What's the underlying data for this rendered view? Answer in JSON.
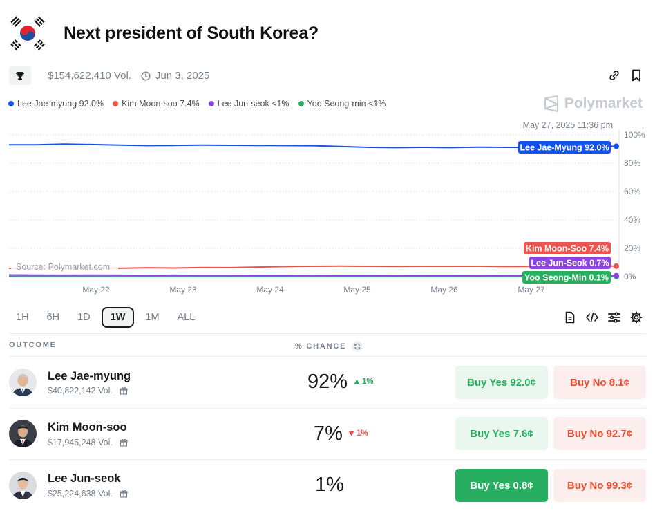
{
  "header": {
    "title": "Next president of South Korea?",
    "flag_icon": "south-korea-flag-icon"
  },
  "meta": {
    "volume": "$154,622,410 Vol.",
    "end_date": "Jun 3, 2025"
  },
  "legend": [
    {
      "label": "Lee Jae-myung 92.0%",
      "color": "#1652f0"
    },
    {
      "label": "Kim Moon-soo 7.4%",
      "color": "#f0544f"
    },
    {
      "label": "Lee Jun-seok <1%",
      "color": "#8e44e0"
    },
    {
      "label": "Yoo Seong-min <1%",
      "color": "#27ae60"
    }
  ],
  "brand": "Polymarket",
  "chart_data": {
    "type": "line",
    "hover_time": "May 27, 2025 11:36 pm",
    "source": "Source: Polymarket.com",
    "x_labels": [
      "May 22",
      "May 23",
      "May 24",
      "May 25",
      "May 26",
      "May 27"
    ],
    "y_ticks": [
      "100%",
      "80%",
      "60%",
      "40%",
      "20%",
      "0%"
    ],
    "ylim": [
      0,
      100
    ],
    "grid": true,
    "series": [
      {
        "name": "Lee Jae-Myung",
        "end_label": "Lee Jae-Myung 92.0%",
        "color": "#1652f0",
        "values": [
          93,
          93,
          93.5,
          93.2,
          92.8,
          92.5,
          92.6,
          92.8,
          92.7,
          92.6,
          92.5,
          92.4,
          91.8,
          91.2,
          91,
          91.2,
          91,
          91.3,
          91.2,
          91,
          91.3,
          91.8,
          92
        ]
      },
      {
        "name": "Kim Moon-Soo",
        "end_label": "Kim Moon-Soo 7.4%",
        "color": "#f0544f",
        "values": [
          5.8,
          6.2,
          5.9,
          6.2,
          5.9,
          6.3,
          6.1,
          6.5,
          6.4,
          6.8,
          7.1,
          7.3,
          7.4,
          7.3,
          7.2,
          7.3,
          7.3,
          7.3,
          7.1,
          7.2,
          7.2,
          7.3,
          7.4
        ]
      },
      {
        "name": "Lee Jun-Seok",
        "end_label": "Lee Jun-Seok 0.7%",
        "color": "#8e44e0",
        "values": [
          1.2,
          1.1,
          1.0,
          1.1,
          1.0,
          0.9,
          1.0,
          0.9,
          0.9,
          0.8,
          0.8,
          0.9,
          0.8,
          0.8,
          0.7,
          0.8,
          0.8,
          0.7,
          0.8,
          0.7,
          0.7,
          0.7,
          0.7
        ]
      },
      {
        "name": "Yoo Seong-Min",
        "end_label": "Yoo Seong-Min 0.1%",
        "color": "#27ae60",
        "values": [
          0.2,
          0.2,
          0.2,
          0.2,
          0.1,
          0.1,
          0.1,
          0.1,
          0.1,
          0.1,
          0.1,
          0.1,
          0.1,
          0.1,
          0.1,
          0.1,
          0.1,
          0.1,
          0.1,
          0.1,
          0.1,
          0.1,
          0.1
        ]
      }
    ]
  },
  "ranges": [
    "1H",
    "6H",
    "1D",
    "1W",
    "1M",
    "ALL"
  ],
  "active_range": "1W",
  "table": {
    "outcome_header": "OUTCOME",
    "chance_header": "% CHANCE",
    "rows": [
      {
        "name": "Lee Jae-myung",
        "volume": "$40,822,142 Vol.",
        "chance": "92%",
        "delta": "1%",
        "direction": "up",
        "buy_yes": "Buy Yes 92.0¢",
        "buy_no": "Buy No 8.1¢"
      },
      {
        "name": "Kim Moon-soo",
        "volume": "$17,945,248 Vol.",
        "chance": "7%",
        "delta": "1%",
        "direction": "down",
        "buy_yes": "Buy Yes 7.6¢",
        "buy_no": "Buy No 92.7¢"
      },
      {
        "name": "Lee Jun-seok",
        "volume": "$25,224,638 Vol.",
        "chance": "1%",
        "delta": "",
        "direction": "none",
        "buy_yes": "Buy Yes 0.8¢",
        "buy_no": "Buy No 99.3¢"
      }
    ]
  }
}
